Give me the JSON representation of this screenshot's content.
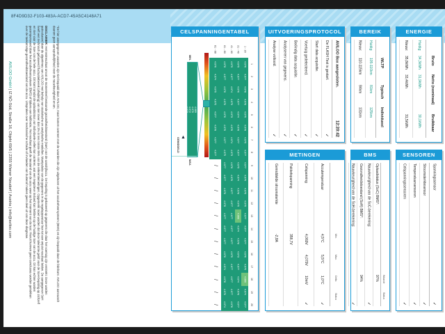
{
  "document_id": "8F4D9D32-F103-483A-ACD7-45A5C4148A71",
  "disclaimer": {
    "note": "*De hier weergegeven waarden zijn niet bepaald door AVILOO, maar komen overeen met de waarden die zijn uitgelezen uit het accubeheersysteem (BMS) en zijn bepaald door de fabrikant. AVILOO aanvaardt daarom geen aansprakelijkheid voor de nauwkeurigheid ervan.",
    "label": "DISCLAIMER:",
    "text": "Het testresultaat omvat de momenteel bestaande gezondheidstoestand (SoH) van de aandrijfaccu. De bepaling is gebaseerd op gegevens die door het voertuig zijn verstrekt. Deze worden geëvalueerd door de algoritmes van AVILOO met behulp van statistische en analytische modellen. Manipulatie van de gegevens in de regelapparatuur kan tot een onjuist resultaat leiden. De aangegeven SoH heeft een technisch gebaseerd fluctuatiebereik (afwijking) van niet meer dan 3% in ten minste 95% van de referentiemetingen. Opgemerkt moet worden dat deze tolerantie geldt voor de SoH-bepaling op zichzelf en niet voor de SoH van de hele accu. Dit komt omdat de oplaadstatus van individuele cellen kan variëren, wat een negatieve invloed kan hebben op de huidige SoH van de accu. Dit kan echter worden gecompenseerd door het accubeheersysteem (BMS) of tijdens een kalibratie. Het resultaat geeft de toestand van de accu weer op het moment van de test. Hieruit kunnen geen conclusies worden getrokken over de toekomstige gezondheidstoestand van de accu. Uitspraken over mechanische schade of invloeden van buitenaf maken geen deel uit van deze diagnose."
  },
  "footer": {
    "brand": "AVILOO GmbH",
    "address": " | IZ NÖ-Süd, Straße 16, Objekt 69/5 | 2355 Wiener Neudorf | Austria | info@aviloo.com"
  },
  "colors": {
    "accent": "#1b9bd7",
    "cell": "#1f9b78",
    "teal_text": "#1a9a8a"
  },
  "celspanning": {
    "title": "CELSPANNINGENTABEL",
    "columns": [
      "1",
      "2",
      "3",
      "4",
      "5",
      "6",
      "7",
      "8",
      "9",
      "10",
      "11",
      "12",
      "13",
      "14",
      "15",
      "16",
      "17",
      "18",
      "19",
      "20"
    ],
    "rows": [
      {
        "label": "1 - 20",
        "values": [
          "4.076",
          "4.077",
          "4.078",
          "4.078",
          "4.075",
          "4.078",
          "4.075",
          "4.077",
          "4.077",
          "4.075",
          "4.075",
          "4.075",
          "4.077",
          "4.077",
          "4.077",
          "4.076",
          "4.075",
          "4.069",
          "4.074",
          "4.077"
        ]
      },
      {
        "label": "21 - 40",
        "values": [
          "4.075",
          "4.077",
          "4.076",
          "4.077",
          "4.074",
          "4.078",
          "4.077",
          "4.077",
          "4.075",
          "4.074",
          "4.078",
          "4.075",
          "4.069",
          "4.074",
          "4.078",
          "4.073",
          "4.077",
          "4.074",
          "4.078",
          "4.077"
        ]
      },
      {
        "label": "41 - 60",
        "values": [
          "4.075",
          "4.077",
          "4.074",
          "4.079",
          "4.073",
          "4.076",
          "4.074",
          "4.073",
          "4.076",
          "4.076",
          "4.077",
          "4.077",
          "4.077",
          "4.077",
          "4.077",
          "4.075",
          "4.077",
          "4.077",
          "4.077",
          "4.076"
        ]
      },
      {
        "label": "61 - 80",
        "values": [
          "4.078",
          "4.077",
          "4.076",
          "4.076",
          "4.076",
          "4.076",
          "4.077",
          "4.075",
          "4.077",
          "4.077",
          "4.076",
          "4.078",
          "4.077",
          "4.077",
          "4.077",
          "4.076",
          "4.074",
          "4.078",
          "4.076",
          "4.074"
        ]
      },
      {
        "label": "81 - 88",
        "values": [
          "4.076",
          "4.074",
          "4.075",
          "4.075",
          "4.077",
          "4.078",
          "4.077",
          "4.077"
        ]
      }
    ],
    "empty_mark": "/",
    "min_label": "MIN.",
    "max_label": "MAX.",
    "avg_label": "GEMIDDELD",
    "scale": [
      "4.069",
      "4.070",
      "4.072",
      "4.073",
      "4.074",
      "4.075",
      "4.076",
      "4.078",
      "4.079"
    ]
  },
  "protocol": {
    "title": "UITVOERINGSPROTOCOL",
    "header": "AVILOO Box aangesloten.",
    "time": "12:20:42",
    "steps": [
      "De FLASH Test is gestart.",
      "Start data acquisitie.",
      "Voertuig gedetecteerd.",
      "Beëindig data acquisitie.",
      "Analyseren van gegevens.",
      "Analyse voltooid."
    ],
    "check": "✓"
  },
  "bereik": {
    "title": "BEREIK",
    "headers": [
      "",
      "WLTP",
      "Typisch",
      "Individueel"
    ],
    "rows": [
      [
        "Huidig:",
        "105-110km",
        "81km",
        "125km"
      ],
      [
        "Nieuw:",
        "110-115km",
        "84km",
        "131km"
      ]
    ]
  },
  "energie": {
    "title": "ENERGIE",
    "headers": [
      "",
      "Bruto",
      "Netto (nominaal)",
      "Bruikbaar"
    ],
    "rows": [
      [
        "Huidig:",
        "34,3kWh",
        "31,9kWh",
        "30,1kWh"
      ],
      [
        "Nieuw:",
        "35,8kWh",
        "33,4kWh",
        "31,5kWh"
      ]
    ]
  },
  "metingen": {
    "title": "METINGEN",
    "headers": [
      "",
      "Min.",
      "Max.",
      "Delta",
      "Status"
    ],
    "rows": [
      [
        "Accutemperatuur",
        "4,5°C",
        "5,5°C",
        "1,0°C",
        "✓"
      ],
      [
        "Celspanning",
        "4,069V",
        "4,079V",
        "10mV",
        "✓"
      ],
      [
        "Pakketspanning",
        "358,7V",
        "",
        "",
        ""
      ],
      [
        "Gemiddelde stroomsterkte",
        "-2,8A",
        "",
        "",
        ""
      ]
    ]
  },
  "bms": {
    "title": "BMS",
    "headers": [
      "",
      "Waarde",
      "Status"
    ],
    "rows": [
      [
        "Oplaadstatus (SoC) BMS*:",
        "97%",
        ""
      ],
      [
        "Nauwkeurigheid van de SoC-berekening:",
        "",
        "✓"
      ],
      [
        "Gezondheidstoestand (SoH) BMS*:",
        "94%",
        ""
      ],
      [
        "Nauwkeurigheid van de SoH-berekening:",
        "",
        "✓"
      ]
    ]
  },
  "sensoren": {
    "title": "SENSOREN",
    "rows": [
      [
        "Spanningssensor",
        "✓"
      ],
      [
        "Stroomsterktesensor",
        "✓"
      ],
      [
        "Temperatuursensoren",
        "✓"
      ],
      [
        "Celspanningssensoren",
        "✓"
      ]
    ]
  }
}
